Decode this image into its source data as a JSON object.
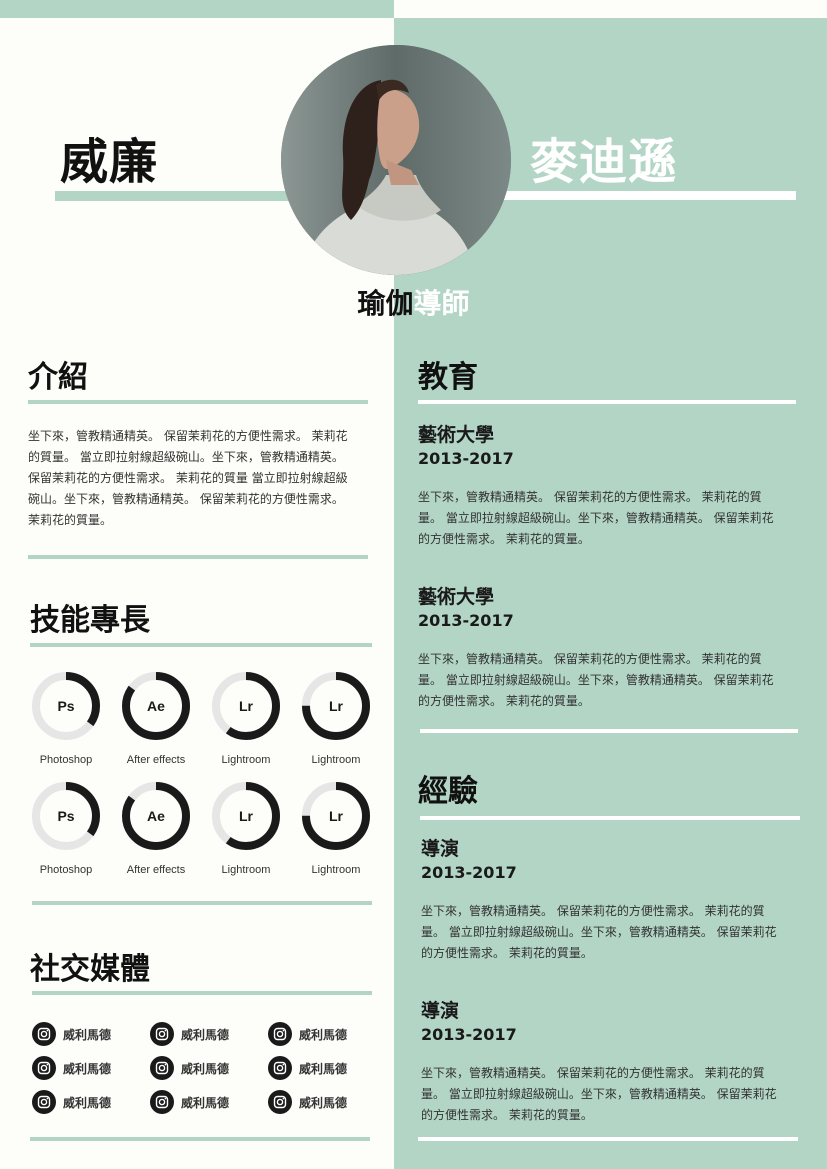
{
  "header": {
    "first_name": "威廉",
    "last_name": "麥迪遜",
    "title_part1": "瑜伽",
    "title_part2": "導師"
  },
  "intro": {
    "heading": "介紹",
    "lines": [
      "坐下來，管教精通精英。 保留茉莉花的方便性需求。 茉莉花",
      "的質量。 當立即拉射線超級碗山。坐下來，管教精通精英。",
      "保留茉莉花的方便性需求。 茉莉花的質量 當立即拉射線超級",
      "碗山。坐下來，管教精通精英。 保留茉莉花的方便性需求。",
      "茉莉花的質量。"
    ]
  },
  "skills": {
    "heading": "技能專長",
    "items": [
      {
        "abbr": "Ps",
        "label": "Photoshop",
        "level": 0.35
      },
      {
        "abbr": "Ae",
        "label": "After effects",
        "level": 0.85
      },
      {
        "abbr": "Lr",
        "label": "Lightroom",
        "level": 0.6
      },
      {
        "abbr": "Lr",
        "label": "Lightroom",
        "level": 0.75
      },
      {
        "abbr": "Ps",
        "label": "Photoshop",
        "level": 0.35
      },
      {
        "abbr": "Ae",
        "label": "After effects",
        "level": 0.85
      },
      {
        "abbr": "Lr",
        "label": "Lightroom",
        "level": 0.6
      },
      {
        "abbr": "Lr",
        "label": "Lightroom",
        "level": 0.75
      }
    ]
  },
  "social": {
    "heading": "社交媒體",
    "icon": "instagram-icon",
    "handles": [
      "威利馬德",
      "威利馬德",
      "威利馬德",
      "威利馬德",
      "威利馬德",
      "威利馬德",
      "威利馬德",
      "威利馬德",
      "威利馬德"
    ]
  },
  "education": {
    "heading": "教育",
    "entries": [
      {
        "school": "藝術大學",
        "years": "2013-2017",
        "lines": [
          "坐下來，管教精通精英。 保留茉莉花的方便性需求。 茉莉花的質",
          "量。 當立即拉射線超級碗山。坐下來，管教精通精英。 保留茉莉花",
          "的方便性需求。 茉莉花的質量。"
        ]
      },
      {
        "school": "藝術大學",
        "years": "2013-2017",
        "lines": [
          "坐下來，管教精通精英。 保留茉莉花的方便性需求。 茉莉花的質",
          "量。 當立即拉射線超級碗山。坐下來，管教精通精英。 保留茉莉花",
          "的方便性需求。 茉莉花的質量。"
        ]
      }
    ]
  },
  "experience": {
    "heading": "經驗",
    "entries": [
      {
        "role": "導演",
        "years": "2013-2017",
        "lines": [
          "坐下來，管教精通精英。 保留茉莉花的方便性需求。 茉莉花的質",
          "量。 當立即拉射線超級碗山。坐下來，管教精通精英。 保留茉莉花",
          "的方便性需求。 茉莉花的質量。"
        ]
      },
      {
        "role": "導演",
        "years": "2013-2017",
        "lines": [
          "坐下來，管教精通精英。 保留茉莉花的方便性需求。 茉莉花的質",
          "量。 當立即拉射線超級碗山。坐下來，管教精通精英。 保留茉莉花",
          "的方便性需求。 茉莉花的質量。"
        ]
      }
    ]
  },
  "colors": {
    "accent_green": "#b2d5c6",
    "ring_dark": "#1a1a1a",
    "ring_track": "#e6e6e6"
  }
}
